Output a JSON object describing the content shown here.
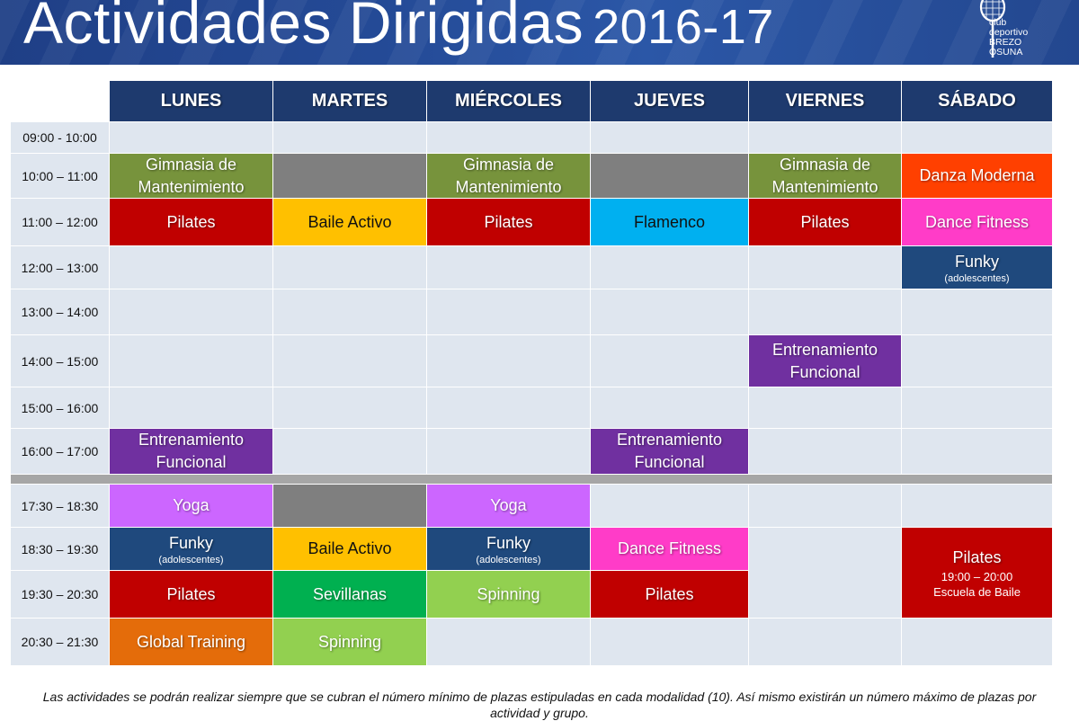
{
  "header": {
    "title": "Actividades Dirigidas",
    "year": "2016-17",
    "logo_line1": "club",
    "logo_line2": "deportivo",
    "logo_line3": "BREZO",
    "logo_line4": "OSUNA"
  },
  "days": [
    "LUNES",
    "MARTES",
    "MIÉRCOLES",
    "JUEVES",
    "VIERNES",
    "SÁBADO"
  ],
  "times": [
    "09:00 - 10:00",
    "10:00 – 11:00",
    "11:00 – 12:00",
    "12:00 – 13:00",
    "13:00 – 14:00",
    "14:00 – 15:00",
    "15:00 – 16:00",
    "16:00 – 17:00",
    "17:30 – 18:30",
    "18:30 – 19:30",
    "19:30 – 20:30",
    "20:30 – 21:30"
  ],
  "activities": {
    "gimnasia": "Gimnasia de Mantenimiento",
    "danza_moderna": "Danza Moderna",
    "pilates": "Pilates",
    "baile_activo": "Baile Activo",
    "flamenco": "Flamenco",
    "dance_fitness": "Dance Fitness",
    "funky": "Funky",
    "adolescentes": "(adolescentes)",
    "entrenamiento": "Entrenamiento Funcional",
    "yoga": "Yoga",
    "sevillanas": "Sevillanas",
    "spinning": "Spinning",
    "global_training": "Global Training",
    "pilates_sat_time": "19:00 – 20:00",
    "escuela_baile": "Escuela de Baile"
  },
  "colors": {
    "header_blue": "#1e3a6e",
    "gimnasia": "#77933c",
    "danza_moderna": "#ff4000",
    "pilates": "#c00000",
    "baile_activo": "#ffc000",
    "flamenco": "#00b0f0",
    "dance_fitness": "#ff3cc8",
    "funky": "#1f497d",
    "entrenamiento": "#7030a0",
    "yoga": "#cc66ff",
    "sevillanas": "#00b050",
    "spinning": "#92d050",
    "global_training": "#e46c0a",
    "unavailable": "#7f7f7f",
    "empty_cell": "#dfe6ef"
  },
  "footer": {
    "note": "Las actividades se podrán realizar siempre que se cubran el número mínimo de plazas estipuladas en cada modalidad (10). Así mismo existirán un número máximo de plazas por actividad y grupo."
  }
}
